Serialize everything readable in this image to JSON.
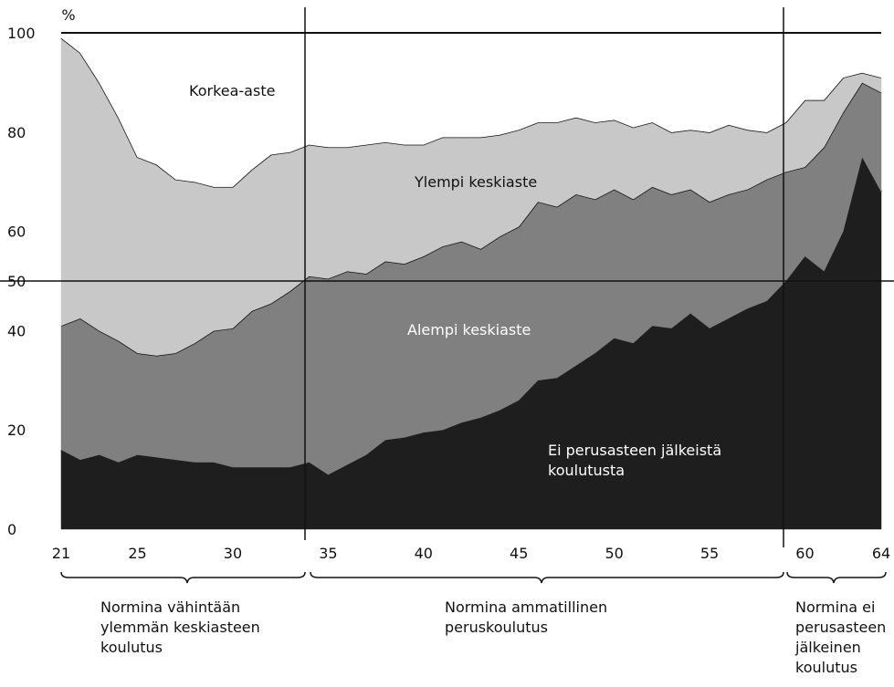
{
  "chart_data": {
    "type": "area",
    "y_label": "%",
    "x": [
      21,
      22,
      23,
      24,
      25,
      26,
      27,
      28,
      29,
      30,
      31,
      32,
      33,
      34,
      35,
      36,
      37,
      38,
      39,
      40,
      41,
      42,
      43,
      44,
      45,
      46,
      47,
      48,
      49,
      50,
      51,
      52,
      53,
      54,
      55,
      56,
      57,
      58,
      59,
      60,
      61,
      62,
      63,
      64
    ],
    "xlim": [
      21,
      64
    ],
    "xticks": [
      21,
      25,
      30,
      35,
      40,
      45,
      50,
      55,
      60,
      64
    ],
    "ylim": [
      0,
      100
    ],
    "yticks": [
      0,
      20,
      40,
      50,
      60,
      80,
      100
    ],
    "stacked": true,
    "series": [
      {
        "name": "Ei perusasteen jälkeistä koulutusta",
        "color": "#1e1e1e",
        "values": [
          16,
          14,
          15,
          13.5,
          15,
          14.5,
          14,
          13.5,
          13.5,
          12.5,
          12.5,
          12.5,
          12.5,
          13.5,
          11,
          13,
          15,
          18,
          18.5,
          19.5,
          20,
          21.5,
          22.5,
          24,
          26,
          30,
          30.5,
          33,
          35.5,
          38.5,
          37.5,
          41,
          40.5,
          43.5,
          40.5,
          42.5,
          44.5,
          46,
          50,
          55,
          52,
          60,
          75,
          68
        ]
      },
      {
        "name": "Alempi keskiaste",
        "color": "#808080",
        "values": [
          25,
          28.5,
          25,
          24.5,
          20.5,
          20.5,
          21.5,
          24,
          26.5,
          28,
          31.5,
          33,
          35.5,
          37.5,
          39.5,
          39,
          36.5,
          36,
          35,
          35.5,
          37,
          36.5,
          34,
          35,
          35,
          36,
          34.5,
          34.5,
          31,
          30,
          29,
          28,
          27,
          25,
          25.5,
          25,
          24,
          24.5,
          22,
          18,
          25,
          24,
          15,
          20
        ]
      },
      {
        "name": "Ylempi keskiaste",
        "color": "#c8c8c8",
        "values": [
          58,
          53.5,
          50,
          45,
          39.5,
          38.5,
          35,
          32.5,
          29,
          28.5,
          28.5,
          30,
          28,
          26.5,
          26.5,
          25,
          26,
          24,
          24,
          22.5,
          22,
          21,
          22.5,
          20.5,
          19.5,
          16,
          17,
          15.5,
          15.5,
          14,
          14.5,
          13,
          12.5,
          12,
          14,
          14,
          12,
          9.5,
          10,
          13.5,
          9.5,
          7,
          2,
          3
        ]
      },
      {
        "name": "Korkea-aste",
        "color": "#ffffff",
        "values": [
          1,
          4,
          10,
          17,
          25,
          26.5,
          29.5,
          30,
          31,
          31,
          27.5,
          24.5,
          24,
          22.5,
          23,
          23,
          22.5,
          22,
          22.5,
          22.5,
          21,
          21,
          21,
          20.5,
          19.5,
          18,
          18,
          17,
          18,
          17.5,
          19,
          18,
          20,
          19.5,
          20,
          18.5,
          19.5,
          20,
          18,
          13.5,
          13.5,
          9,
          8,
          9
        ]
      }
    ],
    "annotations": [
      "Normina vähintään ylemmän keskiasteen koulutus",
      "Normina ammatillinen peruskoulutus",
      "Normina ei perusasteen jälkeinen koulutus"
    ]
  }
}
